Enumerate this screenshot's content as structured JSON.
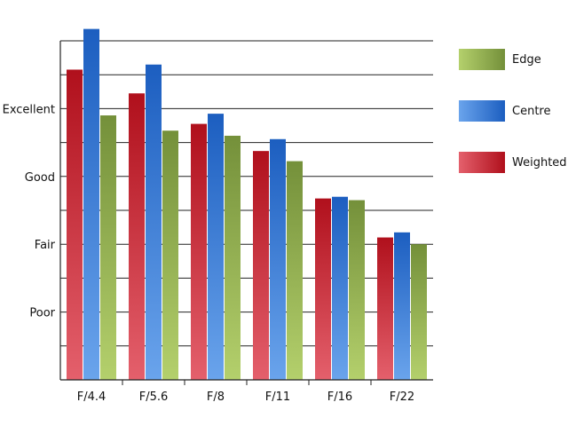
{
  "chart_data": {
    "type": "bar",
    "categories": [
      "F/4.4",
      "F/5.6",
      "F/8",
      "F/11",
      "F/16",
      "F/22"
    ],
    "series": [
      {
        "name": "Weighted",
        "values": [
          9.15,
          8.45,
          7.55,
          6.75,
          5.35,
          4.2
        ],
        "color_dark": "#b0101c",
        "color_light": "#e4606c"
      },
      {
        "name": "Centre",
        "values": [
          10.35,
          9.3,
          7.85,
          7.1,
          5.4,
          4.35
        ],
        "color_dark": "#1c5ec0",
        "color_light": "#6aa4ec"
      },
      {
        "name": "Edge",
        "values": [
          7.8,
          7.35,
          7.2,
          6.45,
          5.3,
          4.0
        ],
        "color_dark": "#74903a",
        "color_light": "#b4d06c"
      }
    ],
    "y_tick_labels": [
      {
        "value": 2,
        "label": "Poor"
      },
      {
        "value": 4,
        "label": "Fair"
      },
      {
        "value": 6,
        "label": "Good"
      },
      {
        "value": 8,
        "label": "Excellent"
      }
    ],
    "ylim": [
      0,
      10
    ],
    "grid": true,
    "legend_position": "right",
    "legend": [
      {
        "label": "Edge",
        "series": "Edge"
      },
      {
        "label": "Centre",
        "series": "Centre"
      },
      {
        "label": "Weighted",
        "series": "Weighted"
      }
    ]
  }
}
